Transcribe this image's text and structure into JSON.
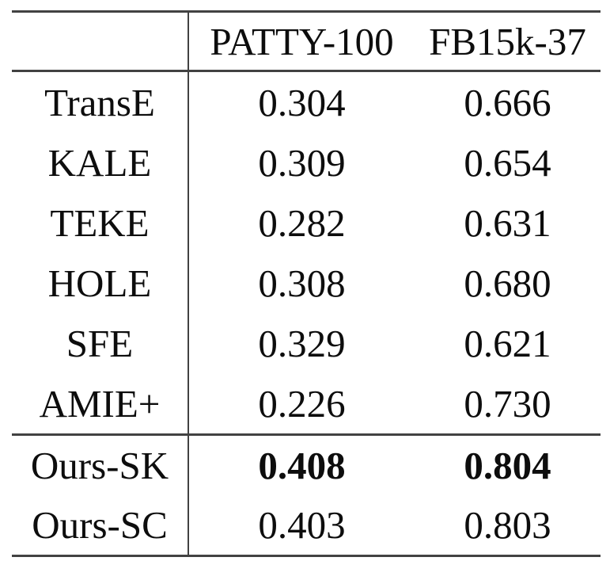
{
  "table": {
    "col_headers": [
      "PATTY-100",
      "FB15k-37"
    ],
    "rows": [
      {
        "label": "TransE",
        "values": [
          "0.304",
          "0.666"
        ]
      },
      {
        "label": "KALE",
        "values": [
          "0.309",
          "0.654"
        ]
      },
      {
        "label": "TEKE",
        "values": [
          "0.282",
          "0.631"
        ]
      },
      {
        "label": "HOLE",
        "values": [
          "0.308",
          "0.680"
        ]
      },
      {
        "label": "SFE",
        "values": [
          "0.329",
          "0.621"
        ]
      },
      {
        "label": "AMIE+",
        "values": [
          "0.226",
          "0.730"
        ]
      },
      {
        "label": "Ours-SK",
        "values": [
          "0.408",
          "0.804"
        ]
      },
      {
        "label": "Ours-SC",
        "values": [
          "0.403",
          "0.803"
        ]
      }
    ]
  },
  "colors": {
    "text": "#0d0d0d",
    "rule": "#424242",
    "background": "#ffffff"
  }
}
